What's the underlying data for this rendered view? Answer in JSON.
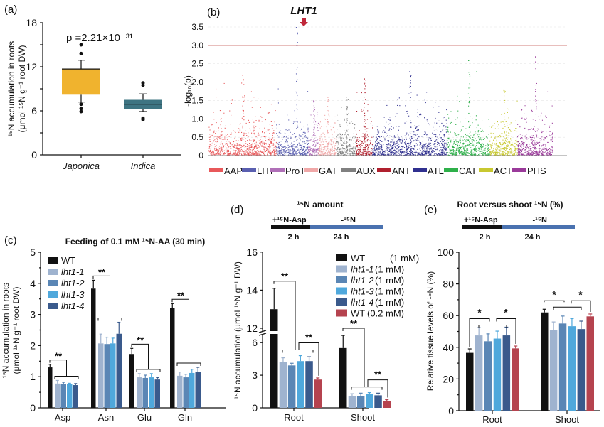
{
  "panels": {
    "a": "(a)",
    "b": "(b)",
    "c": "(c)",
    "d": "(d)",
    "e": "(e)"
  },
  "chart_data": [
    {
      "id": "a",
      "type": "box",
      "ylabel_line1": "¹⁵N accumulation in roots",
      "ylabel_line2": "(μmol ¹⁵N g⁻¹ root DW)",
      "ylim": [
        0,
        18
      ],
      "yticks": [
        "0",
        "6",
        "12",
        "18"
      ],
      "annotation": "p =2.21×10⁻³¹",
      "categories": [
        "Japonica",
        "Indica"
      ],
      "colors": [
        "#f0b32e",
        "#3e7482"
      ],
      "boxes": [
        {
          "q1": 8.2,
          "median": 11.7,
          "q3": 11.7,
          "whisker_low": 7.2,
          "whisker_high": 12.9,
          "outliers": [
            15.0,
            13.8,
            6.9,
            6.3,
            5.9
          ]
        },
        {
          "q1": 6.2,
          "median": 6.9,
          "q3": 7.5,
          "whisker_low": 5.9,
          "whisker_high": 8.3,
          "outliers": [
            9.8,
            9.5,
            5.0,
            4.8
          ]
        }
      ]
    },
    {
      "id": "b",
      "type": "scatter",
      "subtype": "manhattan",
      "ylabel": "-log₁₀(p)",
      "ylim": [
        0,
        3.6
      ],
      "yticks": [
        "0",
        "0.5",
        "1.0",
        "1.5",
        "2.0",
        "2.5",
        "3.0",
        "3.5"
      ],
      "threshold": 3.0,
      "threshold_color": "#c0504d",
      "highlight_label": "LHT1",
      "highlight_color": "#c0283a",
      "families": [
        {
          "name": "AAP",
          "color": "#e8585a",
          "peak": 2.2
        },
        {
          "name": "LHT",
          "color": "#5a5fb0",
          "peak": 3.5
        },
        {
          "name": "ProT",
          "color": "#b070b8",
          "peak": 1.5
        },
        {
          "name": "GAT",
          "color": "#f0a8a8",
          "peak": 1.6
        },
        {
          "name": "AUX",
          "color": "#808080",
          "peak": 1.6
        },
        {
          "name": "ANT",
          "color": "#b0202e",
          "peak": 2.1
        },
        {
          "name": "ATL",
          "color": "#30308f",
          "peak": 2.3
        },
        {
          "name": "CAT",
          "color": "#2eb04a",
          "peak": 2.6
        },
        {
          "name": "ACT",
          "color": "#c8c830",
          "peak": 1.8
        },
        {
          "name": "PHS",
          "color": "#9a3a9a",
          "peak": 2.7
        }
      ],
      "legend_position": "bottom"
    },
    {
      "id": "c",
      "type": "bar",
      "title": "Feeding of 0.1 mM ¹⁵N-AA (30 min)",
      "ylabel_line1": "¹⁵N accumulation in roots",
      "ylabel_line2": "(μmol ¹⁵N g⁻¹ root DW)",
      "ylim": [
        0,
        5
      ],
      "yticks": [
        "0",
        "1",
        "2",
        "3",
        "4",
        "5"
      ],
      "categories": [
        "Asp",
        "Asn",
        "Glu",
        "Gln"
      ],
      "series": [
        {
          "name": "WT",
          "color": "#111111",
          "values": [
            1.3,
            3.83,
            1.73,
            3.2
          ],
          "errors": [
            0.1,
            0.27,
            0.18,
            0.15
          ]
        },
        {
          "name": "lht1-1",
          "color": "#9fb3cf",
          "values": [
            0.78,
            2.07,
            0.98,
            1.03
          ],
          "errors": [
            0.1,
            0.3,
            0.12,
            0.12
          ]
        },
        {
          "name": "lht1-2",
          "color": "#5a86b5",
          "values": [
            0.76,
            2.05,
            0.96,
            0.98
          ],
          "errors": [
            0.06,
            0.22,
            0.09,
            0.1
          ]
        },
        {
          "name": "lht1-3",
          "color": "#4fa8dc",
          "values": [
            0.76,
            2.07,
            0.98,
            1.12
          ],
          "errors": [
            0.03,
            0.17,
            0.12,
            0.12
          ]
        },
        {
          "name": "lht1-4",
          "color": "#3a5a8c",
          "values": [
            0.73,
            2.38,
            0.91,
            1.16
          ],
          "errors": [
            0.05,
            0.37,
            0.06,
            0.14
          ]
        }
      ],
      "significance": [
        "**",
        "**",
        "**",
        "**"
      ],
      "legend_position": "top-left"
    },
    {
      "id": "d",
      "type": "bar",
      "title": "¹⁵N amount",
      "timeline": {
        "phase1": "+¹⁵N-Asp",
        "phase1_time": "2 h",
        "phase2": "-¹⁵N",
        "phase2_time": "24 h"
      },
      "ylabel": "¹⁵N accumulation (μmol ¹⁵N g⁻¹ DW)",
      "ylim": [
        0,
        16
      ],
      "axis_break": [
        6,
        12
      ],
      "yticks": [
        "0",
        "3",
        "6",
        "12",
        "14",
        "16"
      ],
      "categories": [
        "Root",
        "Shoot"
      ],
      "series": [
        {
          "name": "WT",
          "conc": "(1 mM)",
          "color": "#111111",
          "values": [
            13.0,
            5.5
          ],
          "errors": [
            1.1,
            0.9
          ]
        },
        {
          "name": "lht1-1",
          "conc": "(1 mM)",
          "color": "#9fb3cf",
          "values": [
            4.2,
            1.1
          ],
          "errors": [
            0.4,
            0.2
          ]
        },
        {
          "name": "lht1-2",
          "conc": "(1 mM)",
          "color": "#5a86b5",
          "values": [
            3.9,
            1.1
          ],
          "errors": [
            0.2,
            0.25
          ]
        },
        {
          "name": "lht1-3",
          "conc": "(1 mM)",
          "color": "#4fa8dc",
          "values": [
            4.3,
            1.25
          ],
          "errors": [
            0.5,
            0.15
          ]
        },
        {
          "name": "lht1-4",
          "conc": "(1 mM)",
          "color": "#3a5a8c",
          "values": [
            4.3,
            1.15
          ],
          "errors": [
            0.4,
            0.2
          ]
        },
        {
          "name": "WT",
          "conc": "(0.2 mM)",
          "color": "#b5434f",
          "values": [
            2.6,
            0.65
          ],
          "errors": [
            0.15,
            0.1
          ]
        }
      ],
      "significance": [
        "**",
        "**",
        "**",
        "**"
      ],
      "legend_position": "top-right"
    },
    {
      "id": "e",
      "type": "bar",
      "title": "Root versus shoot ¹⁵N (%)",
      "timeline": {
        "phase1": "+¹⁵N-Asp",
        "phase1_time": "2 h",
        "phase2": "-¹⁵N",
        "phase2_time": "24 h"
      },
      "ylabel": "Relative tissue levels of ¹⁵N (%)",
      "ylim": [
        0,
        100
      ],
      "yticks": [
        "0",
        "20",
        "40",
        "60",
        "80",
        "100"
      ],
      "categories": [
        "Root",
        "Shoot"
      ],
      "series": [
        {
          "color": "#111111",
          "values": [
            36.5,
            62.0
          ],
          "errors": [
            2.5,
            2.0
          ]
        },
        {
          "color": "#9fb3cf",
          "values": [
            47.5,
            51.0
          ],
          "errors": [
            5.0,
            5.0
          ]
        },
        {
          "color": "#5a86b5",
          "values": [
            43.8,
            55.0
          ],
          "errors": [
            4.7,
            4.7
          ]
        },
        {
          "color": "#4fa8dc",
          "values": [
            45.5,
            53.3
          ],
          "errors": [
            4.7,
            4.8
          ]
        },
        {
          "color": "#3a5a8c",
          "values": [
            47.5,
            51.5
          ],
          "errors": [
            5.2,
            5.0
          ]
        },
        {
          "color": "#b5434f",
          "values": [
            39.3,
            59.5
          ],
          "errors": [
            1.5,
            1.5
          ]
        }
      ],
      "significance": [
        "*",
        "*",
        "*",
        "*"
      ]
    }
  ]
}
